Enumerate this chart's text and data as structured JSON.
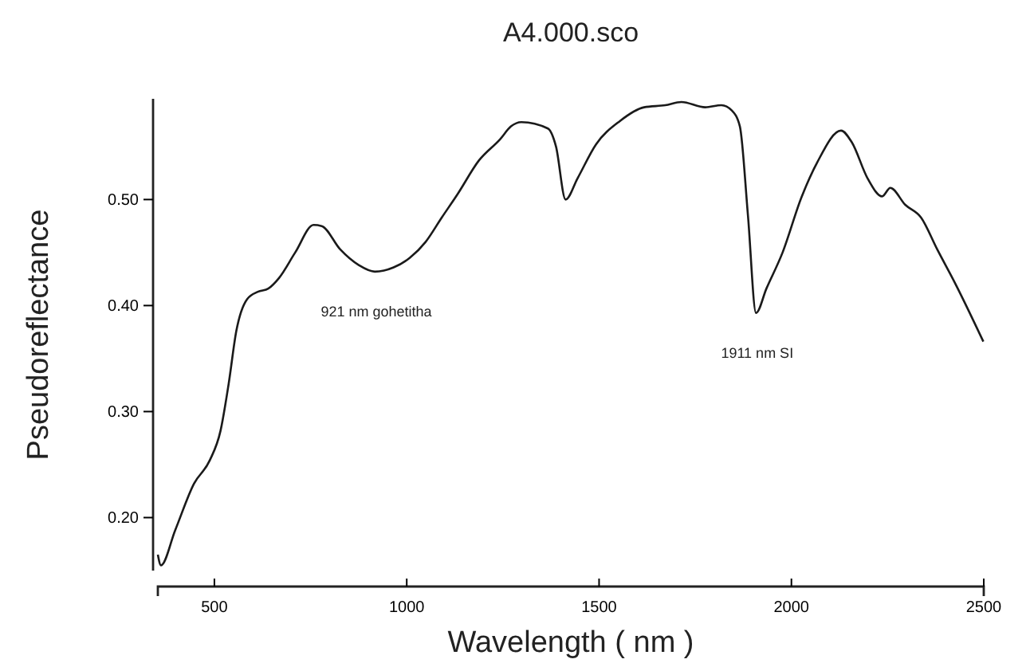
{
  "chart_data": {
    "type": "line",
    "title": "A4.000.sco",
    "xlabel": "Wavelength ( nm )",
    "ylabel": "Pseudoreflectance",
    "xlim": [
      353,
      2500
    ],
    "ylim": [
      0.15,
      0.595
    ],
    "xticks": [
      500,
      1000,
      1500,
      2000,
      2500
    ],
    "yticks": [
      {
        "value": 0.2,
        "label": "0.20"
      },
      {
        "value": 0.3,
        "label": "0.30"
      },
      {
        "value": 0.4,
        "label": "0.40"
      },
      {
        "value": 0.5,
        "label": "0.50"
      }
    ],
    "grid": false,
    "marker": "none",
    "line_style": "solid",
    "annotations": [
      {
        "text": "921 nm gohetitha",
        "x": 921,
        "y": 0.432
      },
      {
        "text": "1911 nm SI",
        "x": 1911,
        "y": 0.393
      }
    ],
    "series": [
      {
        "color": "#1a1a1a",
        "x": [
          353,
          361,
          398,
          447,
          488,
          516,
          537,
          557,
          585,
          613,
          640,
          668,
          710,
          758,
          779,
          827,
          876,
          917,
          966,
          1008,
          1049,
          1091,
          1132,
          1188,
          1243,
          1271,
          1298,
          1367,
          1388,
          1413,
          1444,
          1492,
          1554,
          1617,
          1672,
          1714,
          1776,
          1818,
          1845,
          1866,
          1887,
          1908,
          1935,
          1977,
          2026,
          2067,
          2129,
          2157,
          2198,
          2236,
          2257,
          2296,
          2337,
          2379,
          2427,
          2499
        ],
        "values": [
          0.165,
          0.155,
          0.188,
          0.232,
          0.254,
          0.282,
          0.326,
          0.376,
          0.406,
          0.413,
          0.416,
          0.426,
          0.45,
          0.476,
          0.475,
          0.453,
          0.438,
          0.432,
          0.436,
          0.445,
          0.46,
          0.483,
          0.505,
          0.537,
          0.557,
          0.569,
          0.573,
          0.567,
          0.55,
          0.5,
          0.52,
          0.552,
          0.574,
          0.587,
          0.589,
          0.592,
          0.587,
          0.589,
          0.584,
          0.569,
          0.485,
          0.393,
          0.416,
          0.45,
          0.502,
          0.535,
          0.565,
          0.554,
          0.52,
          0.503,
          0.511,
          0.495,
          0.483,
          0.453,
          0.42,
          0.366
        ]
      }
    ]
  }
}
